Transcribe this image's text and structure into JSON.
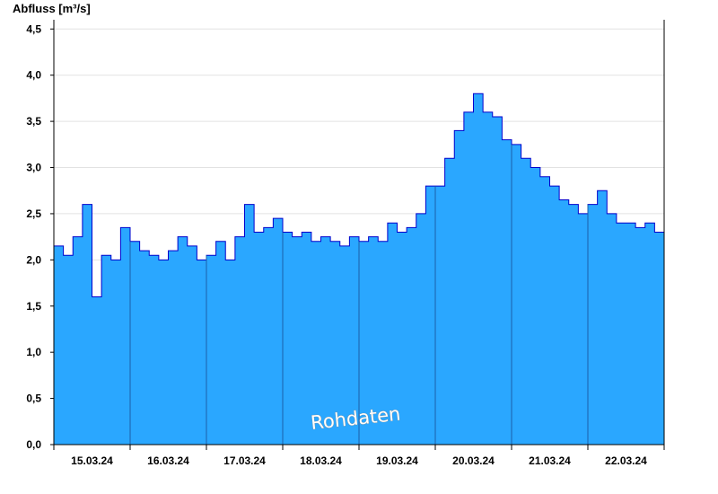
{
  "chart_data": {
    "type": "area",
    "title": "",
    "xlabel": "",
    "ylabel": "Abfluss [m³/s]",
    "ylim": [
      0,
      4.6
    ],
    "xlim": [
      0,
      8
    ],
    "yticks": [
      {
        "v": 0,
        "label": "0,0"
      },
      {
        "v": 0.5,
        "label": "0,5"
      },
      {
        "v": 1.0,
        "label": "1,0"
      },
      {
        "v": 1.5,
        "label": "1,5"
      },
      {
        "v": 2.0,
        "label": "2,0"
      },
      {
        "v": 2.5,
        "label": "2,5"
      },
      {
        "v": 3.0,
        "label": "3,0"
      },
      {
        "v": 3.5,
        "label": "3,5"
      },
      {
        "v": 4.0,
        "label": "4,0"
      },
      {
        "v": 4.5,
        "label": "4,5"
      }
    ],
    "xticks": [
      "15.03.24",
      "16.03.24",
      "17.03.24",
      "18.03.24",
      "19.03.24",
      "20.03.24",
      "21.03.24",
      "22.03.24"
    ],
    "grid": true,
    "fill_color": "#2aa7ff",
    "line_color": "#0000cc",
    "watermark": "Rohdaten",
    "series": [
      {
        "x": [
          0,
          0.125,
          0.25,
          0.375,
          0.5,
          0.625,
          0.75,
          0.875,
          1.0,
          1.125,
          1.25,
          1.375,
          1.5,
          1.625,
          1.75,
          1.875,
          2.0,
          2.125,
          2.25,
          2.375,
          2.5,
          2.625,
          2.75,
          2.875,
          3.0,
          3.125,
          3.25,
          3.375,
          3.5,
          3.625,
          3.75,
          3.875,
          4.0,
          4.125,
          4.25,
          4.375,
          4.5,
          4.625,
          4.75,
          4.875,
          5.0,
          5.125,
          5.25,
          5.375,
          5.5,
          5.625,
          5.75,
          5.875,
          6.0,
          6.125,
          6.25,
          6.375,
          6.5,
          6.625,
          6.75,
          6.875,
          7.0,
          7.125,
          7.25,
          7.375,
          7.5,
          7.625,
          7.75,
          7.875,
          8.0
        ],
        "values": [
          2.15,
          2.05,
          2.25,
          2.6,
          1.6,
          2.05,
          2.0,
          2.35,
          2.2,
          2.1,
          2.05,
          2.0,
          2.1,
          2.25,
          2.15,
          2.0,
          2.05,
          2.2,
          2.0,
          2.25,
          2.6,
          2.3,
          2.35,
          2.45,
          2.3,
          2.25,
          2.3,
          2.2,
          2.25,
          2.2,
          2.15,
          2.25,
          2.2,
          2.25,
          2.2,
          2.4,
          2.3,
          2.35,
          2.5,
          2.8,
          2.8,
          3.1,
          3.4,
          3.6,
          3.8,
          3.6,
          3.55,
          3.3,
          3.25,
          3.1,
          3.0,
          2.9,
          2.8,
          2.65,
          2.6,
          2.5,
          2.6,
          2.75,
          2.5,
          2.4,
          2.4,
          2.35,
          2.4,
          2.3,
          2.2
        ]
      }
    ]
  }
}
